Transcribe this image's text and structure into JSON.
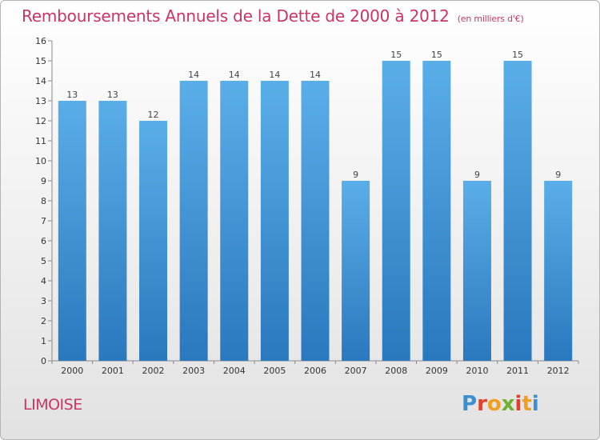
{
  "header": {
    "title": "Remboursements Annuels de la Dette de 2000 à 2012",
    "unit": "(en milliers d'€)"
  },
  "footer": {
    "place": "LIMOISE",
    "logo": "Proxiti"
  },
  "colors": {
    "title": "#cc3366",
    "bar_top": "#5aaee8",
    "bar_bottom": "#2a78be",
    "logo_letters": [
      "#3a8fd0",
      "#e0402c",
      "#f0a020",
      "#70b030",
      "#e0402c",
      "#f0a020",
      "#3a8fd0"
    ]
  },
  "chart_data": {
    "type": "bar",
    "categories": [
      "2000",
      "2001",
      "2002",
      "2003",
      "2004",
      "2005",
      "2006",
      "2007",
      "2008",
      "2009",
      "2010",
      "2011",
      "2012"
    ],
    "values": [
      13,
      13,
      12,
      14,
      14,
      14,
      14,
      9,
      15,
      15,
      9,
      15,
      9
    ],
    "title": "Remboursements Annuels de la Dette de 2000 à 2012",
    "ylabel": "",
    "xlabel": "",
    "ylim": [
      0,
      16
    ],
    "yticks": [
      0,
      1,
      2,
      3,
      4,
      5,
      6,
      7,
      8,
      9,
      10,
      11,
      12,
      13,
      14,
      15,
      16
    ],
    "grid": false,
    "legend": "none"
  }
}
